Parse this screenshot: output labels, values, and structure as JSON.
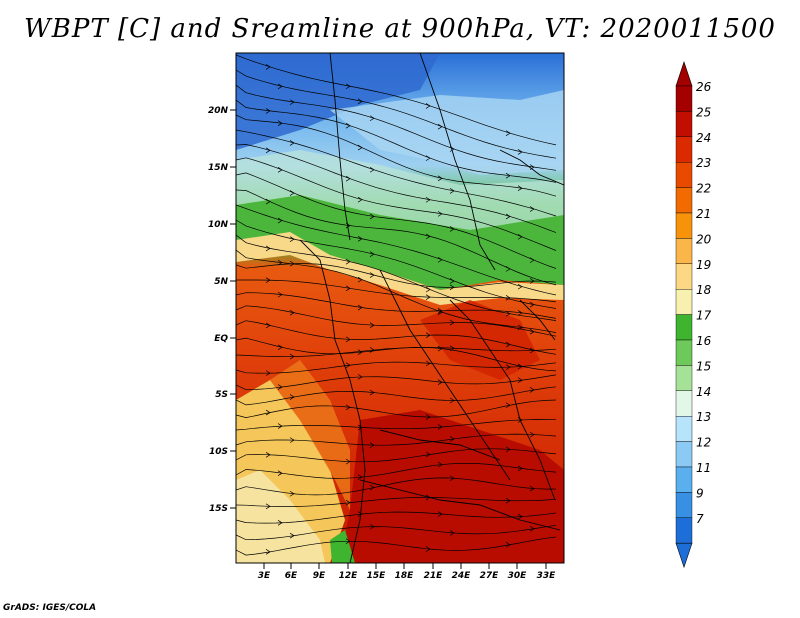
{
  "title": "WBPT [C] and Sreamline at 900hPa, VT: 2020011500",
  "credit": "GrADS: IGES/COLA",
  "map": {
    "lat_labels": [
      "20N",
      "15N",
      "10N",
      "5N",
      "EQ",
      "5S",
      "10S",
      "15S"
    ],
    "lon_labels": [
      "3E",
      "6E",
      "9E",
      "12E",
      "15E",
      "18E",
      "21E",
      "24E",
      "27E",
      "30E",
      "33E"
    ]
  },
  "colorbar": {
    "levels": [
      "26",
      "25",
      "24",
      "23",
      "22",
      "21",
      "20",
      "19",
      "18",
      "17",
      "16",
      "15",
      "14",
      "13",
      "12",
      "11",
      "9",
      "7"
    ],
    "colors": [
      "#a50000",
      "#c00f00",
      "#dc2a00",
      "#e84a00",
      "#f26b00",
      "#f7930a",
      "#fab648",
      "#fcd885",
      "#f7f0b0",
      "#3fb52f",
      "#6cc95a",
      "#a5e197",
      "#e2f7e8",
      "#b7e3fb",
      "#8ccaf5",
      "#5ab0ee",
      "#3890e4",
      "#1d6ed8"
    ],
    "top_arrow_color": "#a50000",
    "bottom_arrow_color": "#1d6ed8"
  }
}
